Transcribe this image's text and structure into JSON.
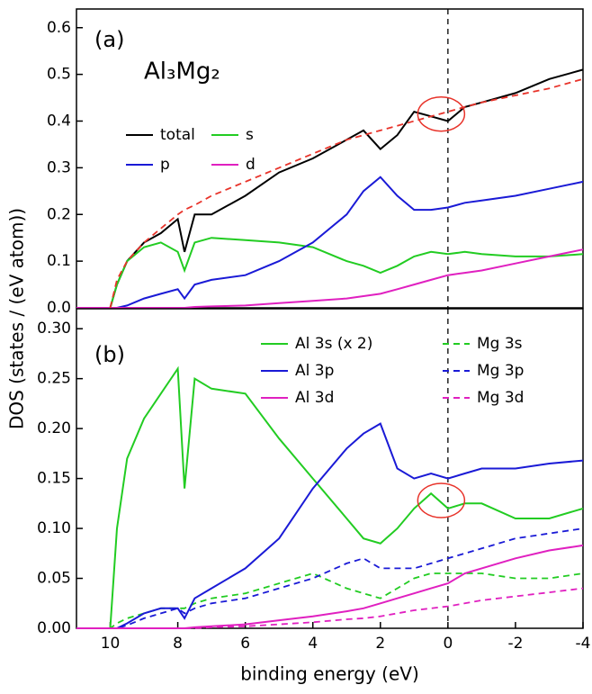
{
  "chart_data": [
    {
      "type": "line",
      "annotations": [
        "(a)",
        "Al₃Mg₂"
      ],
      "ylabel": "DOS (states / (eV atom))",
      "xlim": [
        11,
        -4
      ],
      "ylim": [
        0,
        0.64
      ],
      "yticks": [
        {
          "value": 0,
          "label": "0.0"
        },
        0.1,
        0.2,
        0.3,
        0.4,
        0.5,
        0.6
      ],
      "vline": 0,
      "highlight": {
        "x": 0.2,
        "y": 0.415
      },
      "x": [
        11,
        10,
        9.8,
        9.5,
        9,
        8.5,
        8,
        7.8,
        7.5,
        7,
        6,
        5,
        4,
        3,
        2.5,
        2,
        1.5,
        1,
        0.5,
        0,
        -0.5,
        -1,
        -2,
        -3,
        -4
      ],
      "series": [
        {
          "name": "total",
          "color": "#000000",
          "values": [
            0,
            0,
            0.05,
            0.1,
            0.14,
            0.16,
            0.19,
            0.12,
            0.2,
            0.2,
            0.24,
            0.29,
            0.32,
            0.36,
            0.38,
            0.34,
            0.37,
            0.42,
            0.41,
            0.4,
            0.43,
            0.44,
            0.46,
            0.49,
            0.51
          ]
        },
        {
          "name": "s",
          "color": "#22cc22",
          "values": [
            0,
            0,
            0.05,
            0.1,
            0.13,
            0.14,
            0.12,
            0.08,
            0.14,
            0.15,
            0.145,
            0.14,
            0.13,
            0.1,
            0.09,
            0.075,
            0.09,
            0.11,
            0.12,
            0.115,
            0.12,
            0.115,
            0.11,
            0.11,
            0.115
          ]
        },
        {
          "name": "p",
          "color": "#1a1ad6",
          "values": [
            0,
            0,
            0,
            0.005,
            0.02,
            0.03,
            0.04,
            0.02,
            0.05,
            0.06,
            0.07,
            0.1,
            0.14,
            0.2,
            0.25,
            0.28,
            0.24,
            0.21,
            0.21,
            0.215,
            0.225,
            0.23,
            0.24,
            0.255,
            0.27
          ]
        },
        {
          "name": "d",
          "color": "#e020c0",
          "values": [
            0,
            0,
            0,
            0,
            0,
            0,
            0,
            0,
            0.002,
            0.003,
            0.005,
            0.01,
            0.015,
            0.02,
            0.025,
            0.03,
            0.04,
            0.05,
            0.06,
            0.07,
            0.075,
            0.08,
            0.095,
            0.11,
            0.125
          ]
        },
        {
          "color": "#e8332a",
          "dash": true,
          "values": [
            null,
            0,
            0.06,
            0.1,
            0.14,
            0.17,
            0.2,
            0.21,
            0.22,
            0.24,
            0.27,
            0.3,
            0.33,
            0.36,
            0.37,
            0.38,
            0.39,
            0.4,
            0.41,
            0.42,
            0.43,
            0.44,
            0.455,
            0.47,
            0.49
          ]
        }
      ]
    },
    {
      "type": "line",
      "annotations": [
        "(b)"
      ],
      "xlabel": "binding energy (eV)",
      "xlim": [
        11,
        -4
      ],
      "ylim": [
        0,
        0.32
      ],
      "xticks": [
        10,
        8,
        6,
        4,
        2,
        0,
        -2,
        -4
      ],
      "yticks": [
        {
          "value": 0,
          "label": "0.00"
        },
        {
          "value": 0.05,
          "label": "0.05"
        },
        {
          "value": 0.1,
          "label": "0.10"
        },
        {
          "value": 0.15,
          "label": "0.15"
        },
        {
          "value": 0.2,
          "label": "0.20"
        },
        {
          "value": 0.25,
          "label": "0.25"
        },
        {
          "value": 0.3,
          "label": "0.30"
        }
      ],
      "vline": 0,
      "highlight": {
        "x": 0.2,
        "y": 0.128
      },
      "x": [
        11,
        10,
        9.8,
        9.5,
        9,
        8.5,
        8,
        7.8,
        7.5,
        7,
        6,
        5,
        4,
        3,
        2.5,
        2,
        1.5,
        1,
        0.5,
        0,
        -0.5,
        -1,
        -2,
        -3,
        -4
      ],
      "series": [
        {
          "name": "Al 3s (x 2)",
          "color": "#22cc22",
          "values": [
            0,
            0,
            0.1,
            0.17,
            0.21,
            0.235,
            0.26,
            0.14,
            0.25,
            0.24,
            0.235,
            0.19,
            0.15,
            0.11,
            0.09,
            0.085,
            0.1,
            0.12,
            0.135,
            0.12,
            0.125,
            0.125,
            0.11,
            0.11,
            0.12
          ]
        },
        {
          "name": "Mg 3s",
          "color": "#22cc22",
          "dash": true,
          "values": [
            0,
            0,
            0.005,
            0.01,
            0.015,
            0.02,
            0.02,
            0.02,
            0.025,
            0.03,
            0.035,
            0.045,
            0.055,
            0.04,
            0.035,
            0.03,
            0.04,
            0.05,
            0.055,
            0.055,
            0.055,
            0.055,
            0.05,
            0.05,
            0.055
          ]
        },
        {
          "name": "Al 3p",
          "color": "#1a1ad6",
          "values": [
            0,
            0,
            0,
            0.005,
            0.015,
            0.02,
            0.02,
            0.01,
            0.03,
            0.04,
            0.06,
            0.09,
            0.14,
            0.18,
            0.195,
            0.205,
            0.16,
            0.15,
            0.155,
            0.15,
            0.155,
            0.16,
            0.16,
            0.165,
            0.168
          ]
        },
        {
          "name": "Mg 3p",
          "color": "#1a1ad6",
          "dash": true,
          "values": [
            0,
            0,
            0,
            0.003,
            0.01,
            0.015,
            0.02,
            0.015,
            0.02,
            0.025,
            0.03,
            0.04,
            0.05,
            0.065,
            0.07,
            0.06,
            0.06,
            0.06,
            0.065,
            0.07,
            0.075,
            0.08,
            0.09,
            0.095,
            0.1
          ]
        },
        {
          "name": "Al 3d",
          "color": "#e020c0",
          "values": [
            0,
            0,
            0,
            0,
            0,
            0,
            0,
            0,
            0.001,
            0.002,
            0.004,
            0.008,
            0.012,
            0.017,
            0.02,
            0.025,
            0.03,
            0.035,
            0.04,
            0.045,
            0.055,
            0.06,
            0.07,
            0.078,
            0.083
          ]
        },
        {
          "name": "Mg 3d",
          "color": "#e020c0",
          "dash": true,
          "values": [
            0,
            0,
            0,
            0,
            0,
            0,
            0,
            0,
            0,
            0.001,
            0.002,
            0.004,
            0.006,
            0.009,
            0.01,
            0.012,
            0.015,
            0.018,
            0.02,
            0.022,
            0.025,
            0.028,
            0.032,
            0.036,
            0.04
          ]
        }
      ]
    }
  ]
}
